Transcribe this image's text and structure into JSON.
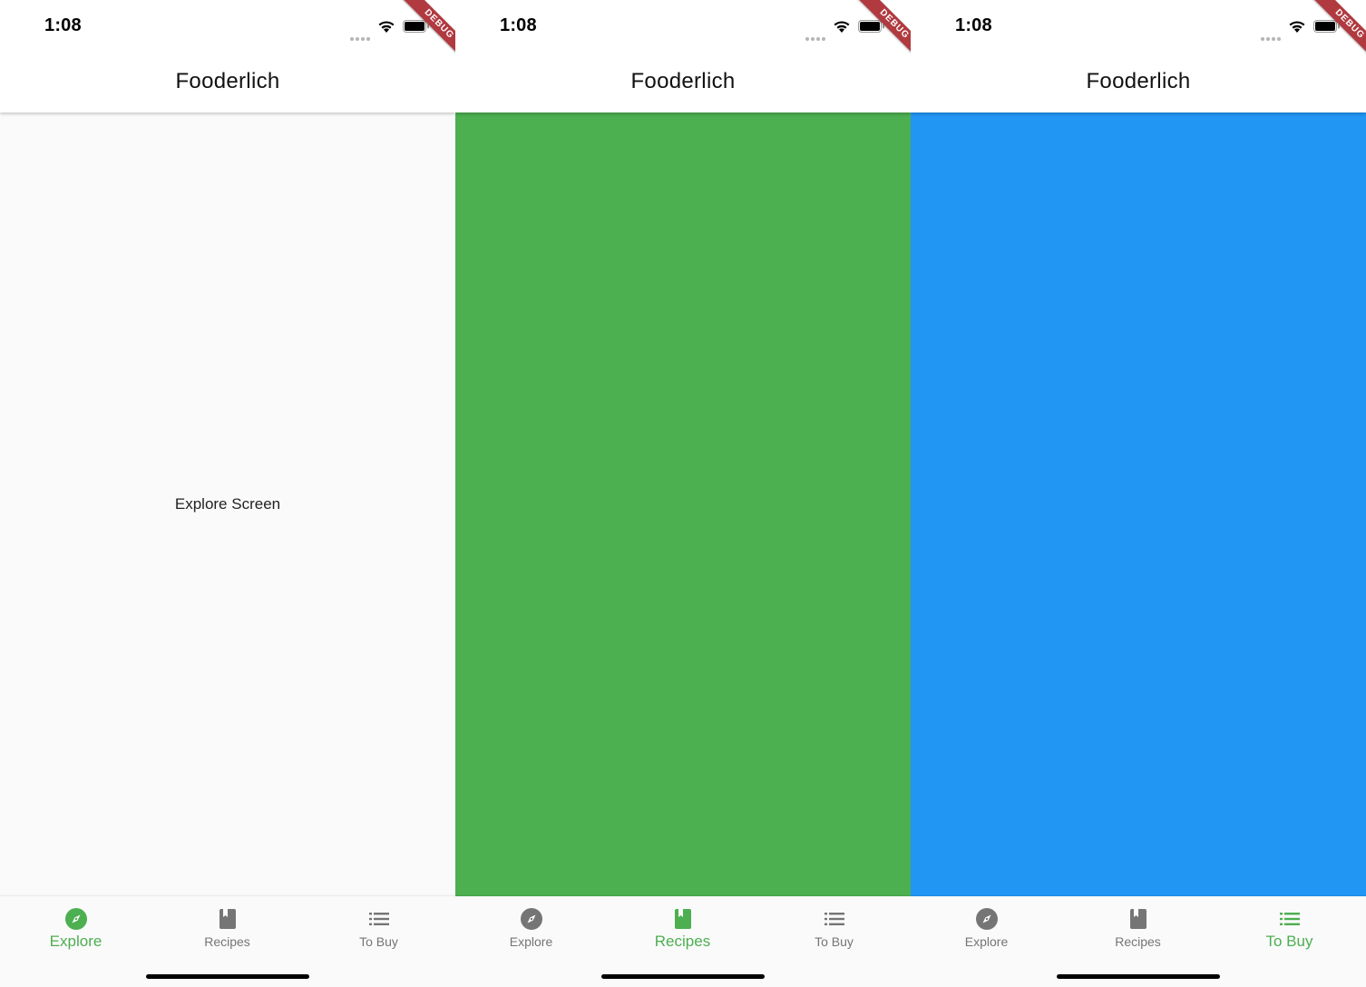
{
  "screens": [
    {
      "status": {
        "time": "1:08"
      },
      "debug_banner": "DEBUG",
      "app_bar": {
        "title": "Fooderlich"
      },
      "body": {
        "text": "Explore Screen",
        "background": "#fafafa"
      },
      "nav": {
        "items": [
          {
            "label": "Explore",
            "icon": "compass-icon"
          },
          {
            "label": "Recipes",
            "icon": "book-icon"
          },
          {
            "label": "To Buy",
            "icon": "list-icon"
          }
        ],
        "selected": "Explore"
      }
    },
    {
      "status": {
        "time": "1:08"
      },
      "debug_banner": "DEBUG",
      "app_bar": {
        "title": "Fooderlich"
      },
      "body": {
        "background": "#4caf50"
      },
      "nav": {
        "items": [
          {
            "label": "Explore",
            "icon": "compass-icon"
          },
          {
            "label": "Recipes",
            "icon": "book-icon"
          },
          {
            "label": "To Buy",
            "icon": "list-icon"
          }
        ],
        "selected": "Recipes"
      }
    },
    {
      "status": {
        "time": "1:08"
      },
      "debug_banner": "DEBUG",
      "app_bar": {
        "title": "Fooderlich"
      },
      "body": {
        "background": "#2196f3"
      },
      "nav": {
        "items": [
          {
            "label": "Explore",
            "icon": "compass-icon"
          },
          {
            "label": "Recipes",
            "icon": "book-icon"
          },
          {
            "label": "To Buy",
            "icon": "list-icon"
          }
        ],
        "selected": "To Buy"
      }
    }
  ],
  "colors": {
    "active": "#4caf50",
    "inactive": "#757575"
  }
}
